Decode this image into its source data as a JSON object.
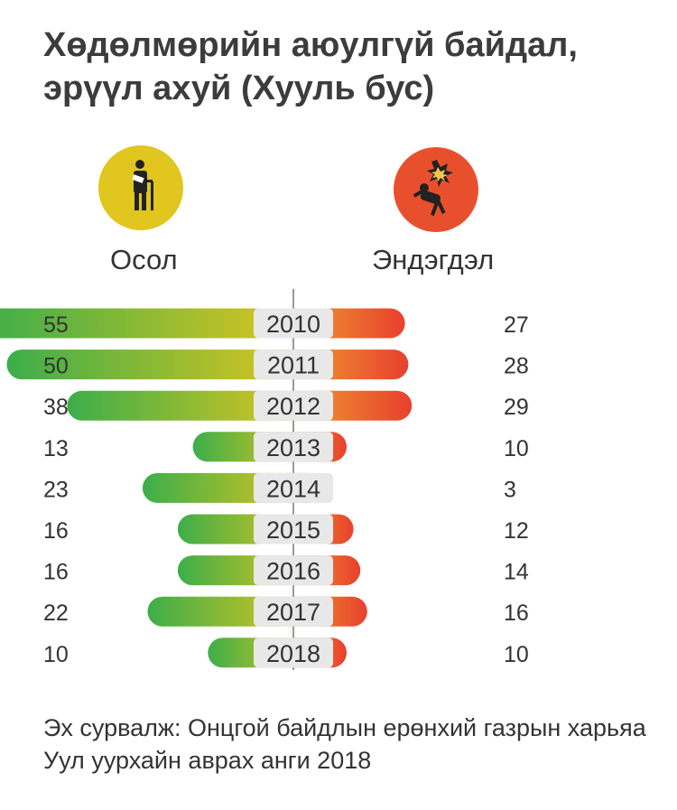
{
  "title": "Хөдөлмөрийн аюулгүй байдал, эрүүл ахуй (Хууль бус)",
  "legend": {
    "left": {
      "label": "Осол",
      "icon": "injured-person-icon",
      "color": "#e0c61e"
    },
    "right": {
      "label": "Эндэгдэл",
      "icon": "falling-person-icon",
      "color": "#e8502d"
    }
  },
  "chart_data": {
    "type": "bar",
    "orientation": "horizontal-diverging",
    "categories": [
      "2010",
      "2011",
      "2012",
      "2013",
      "2014",
      "2015",
      "2016",
      "2017",
      "2018"
    ],
    "series": [
      {
        "name": "Осол",
        "values": [
          55,
          50,
          38,
          13,
          23,
          16,
          16,
          22,
          10
        ],
        "colors": [
          "#3cae4a",
          "#e0c61e"
        ]
      },
      {
        "name": "Эндэгдэл",
        "values": [
          27,
          28,
          29,
          10,
          3,
          12,
          14,
          16,
          10
        ],
        "colors": [
          "#f0a830",
          "#e8402e"
        ]
      }
    ],
    "grid": false
  },
  "source": "Эх сурвалж: Онцгой байдлын ерөнхий газрын харьяа Уул уурхайн аврах анги 2018"
}
